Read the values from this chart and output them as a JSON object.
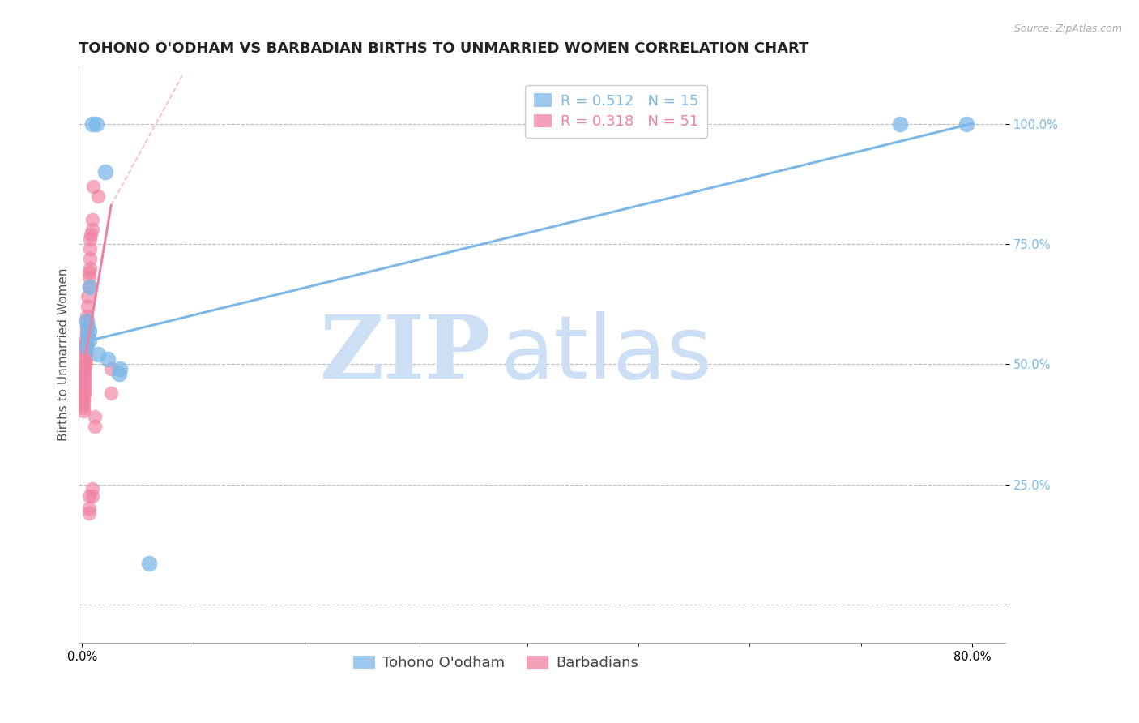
{
  "title": "TOHONO O'ODHAM VS BARBADIAN BIRTHS TO UNMARRIED WOMEN CORRELATION CHART",
  "source": "Source: ZipAtlas.com",
  "ylabel": "Births to Unmarried Women",
  "xlim": [
    -0.003,
    0.83
  ],
  "ylim": [
    -0.08,
    1.12
  ],
  "y_ticks": [
    0.0,
    0.25,
    0.5,
    0.75,
    1.0
  ],
  "y_tick_labels": [
    "",
    "25.0%",
    "50.0%",
    "75.0%",
    "100.0%"
  ],
  "x_tick_labels": [
    "0.0%",
    "80.0%"
  ],
  "x_tick_pos": [
    0.0,
    0.8
  ],
  "x_minor_ticks": [
    0.1,
    0.2,
    0.3,
    0.4,
    0.5,
    0.6,
    0.7
  ],
  "blue_R": "0.512",
  "blue_N": "15",
  "pink_R": "0.318",
  "pink_N": "51",
  "blue_color": "#7BB8E8",
  "pink_color": "#F080A0",
  "blue_scatter": [
    [
      0.009,
      1.0
    ],
    [
      0.013,
      1.0
    ],
    [
      0.021,
      0.9
    ],
    [
      0.007,
      0.66
    ],
    [
      0.004,
      0.59
    ],
    [
      0.005,
      0.58
    ],
    [
      0.006,
      0.57
    ],
    [
      0.005,
      0.56
    ],
    [
      0.006,
      0.55
    ],
    [
      0.004,
      0.535
    ],
    [
      0.014,
      0.52
    ],
    [
      0.023,
      0.51
    ],
    [
      0.034,
      0.49
    ],
    [
      0.033,
      0.48
    ],
    [
      0.06,
      0.085
    ]
  ],
  "pink_scatter": [
    [
      0.01,
      0.87
    ],
    [
      0.014,
      0.85
    ],
    [
      0.009,
      0.8
    ],
    [
      0.009,
      0.78
    ],
    [
      0.008,
      0.77
    ],
    [
      0.007,
      0.76
    ],
    [
      0.007,
      0.74
    ],
    [
      0.007,
      0.72
    ],
    [
      0.007,
      0.7
    ],
    [
      0.006,
      0.69
    ],
    [
      0.006,
      0.68
    ],
    [
      0.006,
      0.66
    ],
    [
      0.005,
      0.64
    ],
    [
      0.005,
      0.62
    ],
    [
      0.004,
      0.6
    ],
    [
      0.004,
      0.59
    ],
    [
      0.004,
      0.58
    ],
    [
      0.004,
      0.572
    ],
    [
      0.004,
      0.565
    ],
    [
      0.004,
      0.558
    ],
    [
      0.003,
      0.55
    ],
    [
      0.003,
      0.543
    ],
    [
      0.003,
      0.536
    ],
    [
      0.003,
      0.529
    ],
    [
      0.003,
      0.522
    ],
    [
      0.003,
      0.515
    ],
    [
      0.003,
      0.508
    ],
    [
      0.003,
      0.501
    ],
    [
      0.002,
      0.494
    ],
    [
      0.002,
      0.487
    ],
    [
      0.002,
      0.48
    ],
    [
      0.002,
      0.473
    ],
    [
      0.002,
      0.466
    ],
    [
      0.002,
      0.459
    ],
    [
      0.002,
      0.452
    ],
    [
      0.002,
      0.445
    ],
    [
      0.002,
      0.438
    ],
    [
      0.001,
      0.431
    ],
    [
      0.001,
      0.424
    ],
    [
      0.001,
      0.417
    ],
    [
      0.001,
      0.41
    ],
    [
      0.001,
      0.403
    ],
    [
      0.026,
      0.49
    ],
    [
      0.026,
      0.44
    ],
    [
      0.011,
      0.39
    ],
    [
      0.011,
      0.37
    ],
    [
      0.009,
      0.24
    ],
    [
      0.009,
      0.225
    ],
    [
      0.006,
      0.225
    ],
    [
      0.006,
      0.2
    ],
    [
      0.006,
      0.19
    ]
  ],
  "blue_line": [
    [
      0.0,
      0.545
    ],
    [
      0.8,
      1.0
    ]
  ],
  "pink_line_solid": [
    [
      0.001,
      0.49
    ],
    [
      0.026,
      0.83
    ]
  ],
  "pink_line_dashed": [
    [
      0.026,
      0.83
    ],
    [
      0.09,
      1.1
    ]
  ],
  "blue_dot_far": [
    0.735,
    1.0
  ],
  "blue_dot_far2": [
    0.795,
    1.0
  ],
  "watermark_zip": "ZIP",
  "watermark_atlas": "atlas",
  "watermark_color": "#CCDFF5",
  "title_fontsize": 13,
  "axis_label_fontsize": 11,
  "tick_fontsize": 10.5,
  "legend_fontsize": 13
}
